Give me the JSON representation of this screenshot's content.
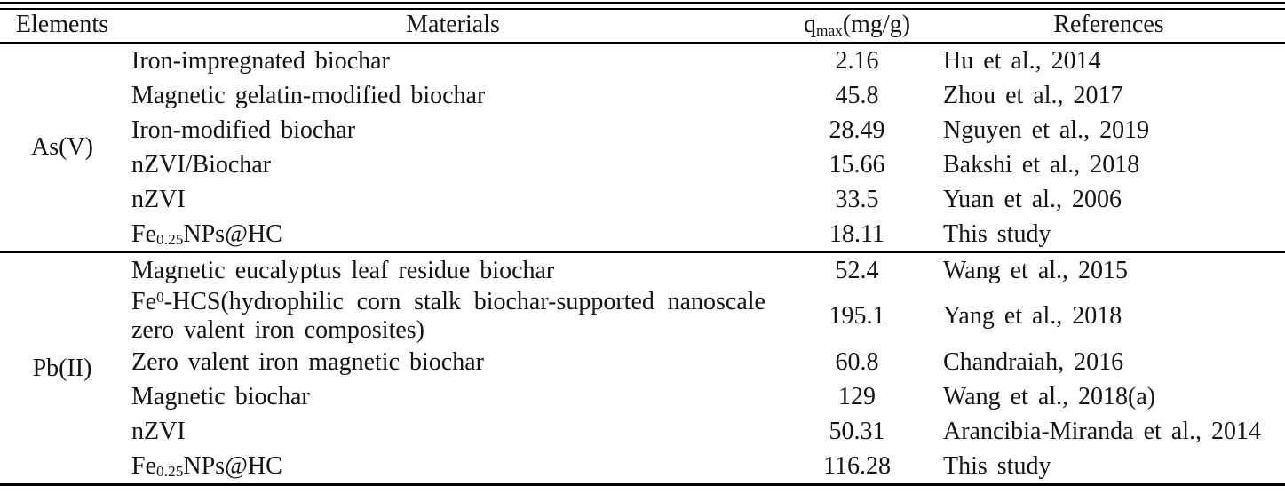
{
  "table": {
    "headers": [
      "Elements",
      "Materials",
      "q~max~(mg/g)",
      "References"
    ],
    "groups": [
      {
        "element": "As(V)",
        "rows": [
          {
            "material": "Iron-impregnated biochar",
            "qmax": "2.16",
            "reference": "Hu et al., 2014"
          },
          {
            "material": "Magnetic gelatin-modified biochar",
            "qmax": "45.8",
            "reference": "Zhou et al., 2017"
          },
          {
            "material": "Iron-modified biochar",
            "qmax": "28.49",
            "reference": "Nguyen et al., 2019"
          },
          {
            "material": "nZVI/Biochar",
            "qmax": "15.66",
            "reference": "Bakshi et al., 2018"
          },
          {
            "material": "nZVI",
            "qmax": "33.5",
            "reference": "Yuan et al., 2006"
          },
          {
            "material": "Fe~0.25~NPs@HC",
            "qmax": "18.11",
            "reference": "This study"
          }
        ]
      },
      {
        "element": "Pb(II)",
        "rows": [
          {
            "material": "Magnetic eucalyptus leaf residue biochar",
            "qmax": "52.4",
            "reference": "Wang et al., 2015"
          },
          {
            "material": "Fe^0^-HCS(hydrophilic corn stalk biochar-supported nanoscale zero valent iron composites)",
            "qmax": "195.1",
            "reference": "Yang et al., 2018"
          },
          {
            "material": "Zero valent iron magnetic biochar",
            "qmax": "60.8",
            "reference": "Chandraiah, 2016"
          },
          {
            "material": "Magnetic biochar",
            "qmax": "129",
            "reference": "Wang et al., 2018(a)"
          },
          {
            "material": "nZVI",
            "qmax": "50.31",
            "reference": "Arancibia-Miranda et al., 2014"
          },
          {
            "material": "Fe~0.25~NPs@HC",
            "qmax": "116.28",
            "reference": "This study"
          }
        ]
      }
    ],
    "colors": {
      "rule": "#000000",
      "text": "#141414",
      "background": "#ffffff"
    }
  }
}
